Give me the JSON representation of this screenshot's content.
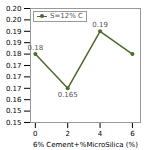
{
  "chart_data": {
    "type": "line",
    "xlabel": "6% Cement+%MicroSilica (%)",
    "x": [
      0,
      2,
      4,
      6
    ],
    "series": [
      {
        "name": "S=12% C",
        "color": "#4a6b2a",
        "marker": "circle",
        "values": [
          0.18,
          0.165,
          0.19,
          0.18
        ]
      }
    ],
    "xlim": [
      -0.3,
      6.5
    ],
    "xticks": [
      0,
      2,
      4,
      6
    ],
    "ylim": [
      0.15,
      0.2
    ],
    "yticks": [
      0.15,
      {
        "value": 0.155,
        "label": "0.15"
      },
      0.16,
      {
        "value": 0.165,
        "label": "0.17"
      },
      0.17,
      {
        "value": 0.175,
        "label": "0.17"
      },
      0.18,
      {
        "value": 0.185,
        "label": "0.19"
      },
      0.19,
      {
        "value": 0.195,
        "label": "0.20"
      },
      {
        "value": 0.2,
        "label": "0.20"
      }
    ],
    "legend": "upper left",
    "annotations": [
      {
        "text": "0.18",
        "x": 0,
        "y": 0.18
      },
      {
        "text": "0.165",
        "x": 2,
        "y": 0.165
      },
      {
        "text": "0.19",
        "x": 4,
        "y": 0.19
      }
    ]
  }
}
